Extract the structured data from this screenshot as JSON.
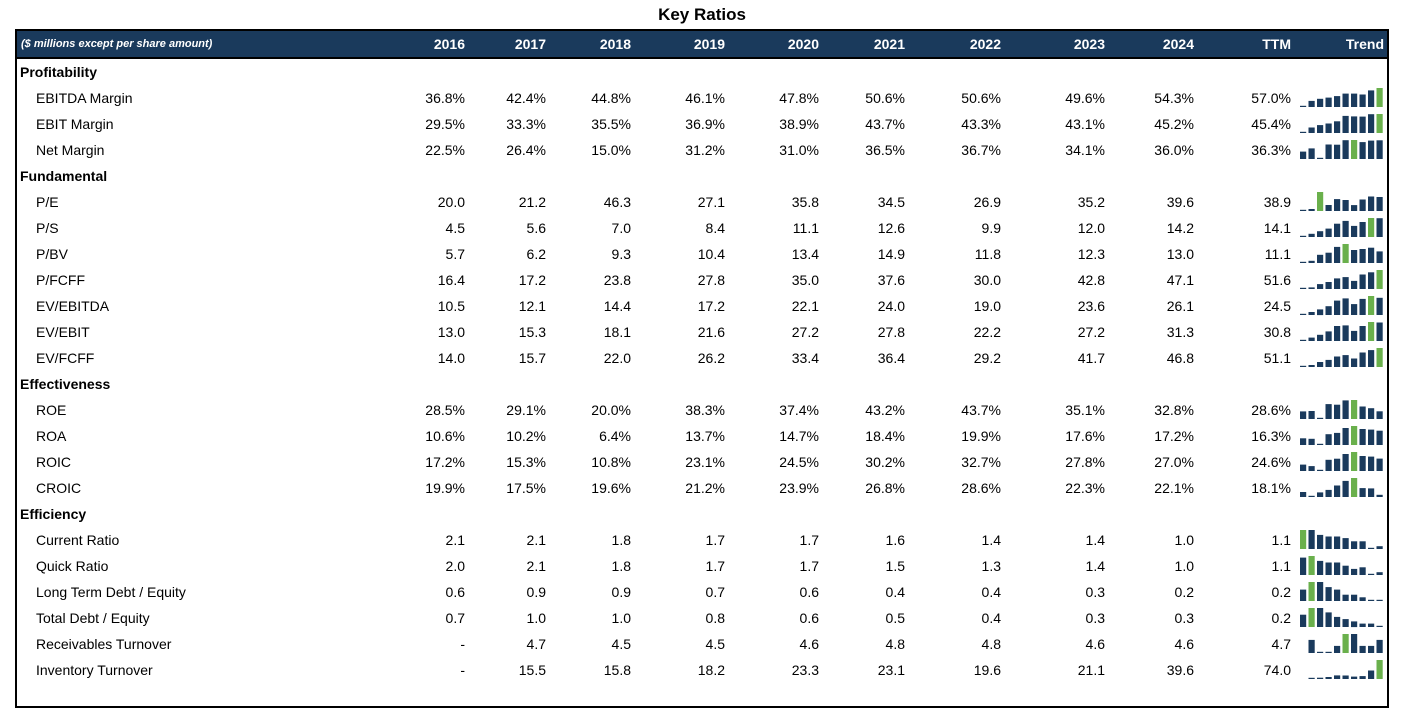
{
  "title": "Key Ratios",
  "header": {
    "label": "($ millions except per share amount)",
    "columns": [
      "2016",
      "2017",
      "2018",
      "2019",
      "2020",
      "2021",
      "2022",
      "2023",
      "2024",
      "TTM",
      "Trend"
    ]
  },
  "colors": {
    "header_bg": "#1a3a5c",
    "bar": "#1a3a5c",
    "bar_highlight": "#6ab04c"
  },
  "sections": [
    {
      "name": "Profitability",
      "rows": [
        {
          "label": "EBITDA Margin",
          "values": [
            "36.8%",
            "42.4%",
            "44.8%",
            "46.1%",
            "47.8%",
            "50.6%",
            "50.6%",
            "49.6%",
            "54.3%",
            "57.0%"
          ]
        },
        {
          "label": "EBIT Margin",
          "values": [
            "29.5%",
            "33.3%",
            "35.5%",
            "36.9%",
            "38.9%",
            "43.7%",
            "43.3%",
            "43.1%",
            "45.2%",
            "45.4%"
          ]
        },
        {
          "label": "Net Margin",
          "values": [
            "22.5%",
            "26.4%",
            "15.0%",
            "31.2%",
            "31.0%",
            "36.5%",
            "36.7%",
            "34.1%",
            "36.0%",
            "36.3%"
          ]
        }
      ]
    },
    {
      "name": "Fundamental",
      "rows": [
        {
          "label": "P/E",
          "values": [
            "20.0",
            "21.2",
            "46.3",
            "27.1",
            "35.8",
            "34.5",
            "26.9",
            "35.2",
            "39.6",
            "38.9"
          ]
        },
        {
          "label": "P/S",
          "values": [
            "4.5",
            "5.6",
            "7.0",
            "8.4",
            "11.1",
            "12.6",
            "9.9",
            "12.0",
            "14.2",
            "14.1"
          ]
        },
        {
          "label": "P/BV",
          "values": [
            "5.7",
            "6.2",
            "9.3",
            "10.4",
            "13.4",
            "14.9",
            "11.8",
            "12.3",
            "13.0",
            "11.1"
          ]
        },
        {
          "label": "P/FCFF",
          "values": [
            "16.4",
            "17.2",
            "23.8",
            "27.8",
            "35.0",
            "37.6",
            "30.0",
            "42.8",
            "47.1",
            "51.6"
          ]
        },
        {
          "label": "EV/EBITDA",
          "values": [
            "10.5",
            "12.1",
            "14.4",
            "17.2",
            "22.1",
            "24.0",
            "19.0",
            "23.6",
            "26.1",
            "24.5"
          ]
        },
        {
          "label": "EV/EBIT",
          "values": [
            "13.0",
            "15.3",
            "18.1",
            "21.6",
            "27.2",
            "27.8",
            "22.2",
            "27.2",
            "31.3",
            "30.8"
          ]
        },
        {
          "label": "EV/FCFF",
          "values": [
            "14.0",
            "15.7",
            "22.0",
            "26.2",
            "33.4",
            "36.4",
            "29.2",
            "41.7",
            "46.8",
            "51.1"
          ]
        }
      ]
    },
    {
      "name": "Effectiveness",
      "rows": [
        {
          "label": "ROE",
          "values": [
            "28.5%",
            "29.1%",
            "20.0%",
            "38.3%",
            "37.4%",
            "43.2%",
            "43.7%",
            "35.1%",
            "32.8%",
            "28.6%"
          ]
        },
        {
          "label": "ROA",
          "values": [
            "10.6%",
            "10.2%",
            "6.4%",
            "13.7%",
            "14.7%",
            "18.4%",
            "19.9%",
            "17.6%",
            "17.2%",
            "16.3%"
          ]
        },
        {
          "label": "ROIC",
          "values": [
            "17.2%",
            "15.3%",
            "10.8%",
            "23.1%",
            "24.5%",
            "30.2%",
            "32.7%",
            "27.8%",
            "27.0%",
            "24.6%"
          ]
        },
        {
          "label": "CROIC",
          "values": [
            "19.9%",
            "17.5%",
            "19.6%",
            "21.2%",
            "23.9%",
            "26.8%",
            "28.6%",
            "22.3%",
            "22.1%",
            "18.1%"
          ]
        }
      ]
    },
    {
      "name": "Efficiency",
      "rows": [
        {
          "label": "Current Ratio",
          "values": [
            "2.1",
            "2.1",
            "1.8",
            "1.7",
            "1.7",
            "1.6",
            "1.4",
            "1.4",
            "1.0",
            "1.1"
          ]
        },
        {
          "label": "Quick Ratio",
          "values": [
            "2.0",
            "2.1",
            "1.8",
            "1.7",
            "1.7",
            "1.5",
            "1.3",
            "1.4",
            "1.0",
            "1.1"
          ]
        },
        {
          "label": "Long Term Debt / Equity",
          "values": [
            "0.6",
            "0.9",
            "0.9",
            "0.7",
            "0.6",
            "0.4",
            "0.4",
            "0.3",
            "0.2",
            "0.2"
          ]
        },
        {
          "label": "Total Debt / Equity",
          "values": [
            "0.7",
            "1.0",
            "1.0",
            "0.8",
            "0.6",
            "0.5",
            "0.4",
            "0.3",
            "0.3",
            "0.2"
          ]
        },
        {
          "label": "Receivables Turnover",
          "values": [
            "-",
            "4.7",
            "4.5",
            "4.5",
            "4.6",
            "4.8",
            "4.8",
            "4.6",
            "4.6",
            "4.7"
          ]
        },
        {
          "label": "Inventory Turnover",
          "values": [
            "-",
            "15.5",
            "15.8",
            "18.2",
            "23.3",
            "23.1",
            "19.6",
            "21.1",
            "39.6",
            "74.0"
          ]
        }
      ]
    }
  ]
}
